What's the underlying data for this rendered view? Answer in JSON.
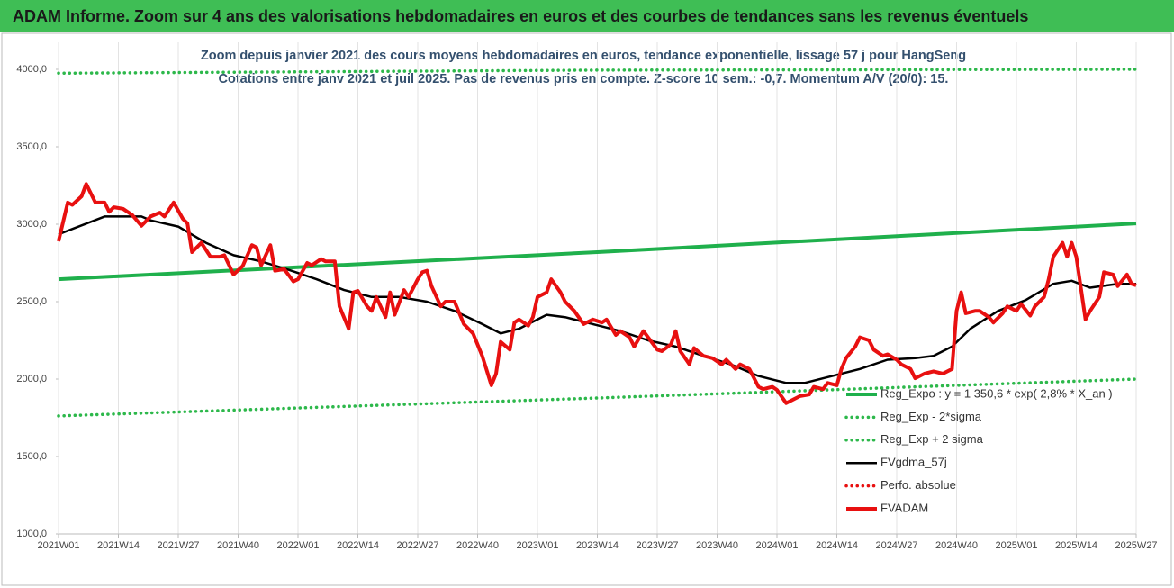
{
  "chart_data": {
    "type": "line",
    "title": "ADAM Informe. Zoom sur 4 ans des valorisations hebdomadaires en euros et des courbes de tendances sans les revenus éventuels",
    "subtitle": [
      "Zoom depuis janvier 2021 des cours moyens hebdomadaires en euros, tendance exponentielle, lissage 57 j pour HangSeng",
      "Cotations entre janv 2021 et juil 2025. Pas de revenus pris en compte. Z-score 10 sem.: -0,7. Momentum A/V (20/0): 15."
    ],
    "xlim": [
      0,
      234
    ],
    "xticks": [
      {
        "value": 0,
        "label": "2021W01"
      },
      {
        "value": 13,
        "label": "2021W14"
      },
      {
        "value": 26,
        "label": "2021W27"
      },
      {
        "value": 39,
        "label": "2021W40"
      },
      {
        "value": 52,
        "label": "2022W01"
      },
      {
        "value": 65,
        "label": "2022W14"
      },
      {
        "value": 78,
        "label": "2022W27"
      },
      {
        "value": 91,
        "label": "2022W40"
      },
      {
        "value": 104,
        "label": "2023W01"
      },
      {
        "value": 117,
        "label": "2023W14"
      },
      {
        "value": 130,
        "label": "2023W27"
      },
      {
        "value": 143,
        "label": "2023W40"
      },
      {
        "value": 156,
        "label": "2024W01"
      },
      {
        "value": 169,
        "label": "2024W14"
      },
      {
        "value": 182,
        "label": "2024W27"
      },
      {
        "value": 195,
        "label": "2024W40"
      },
      {
        "value": 208,
        "label": "2025W01"
      },
      {
        "value": 221,
        "label": "2025W14"
      },
      {
        "value": 234,
        "label": "2025W27"
      }
    ],
    "ylim": [
      1000,
      4000
    ],
    "yticks": [
      {
        "value": 1000,
        "label": "1000,0"
      },
      {
        "value": 1500,
        "label": "1500,0"
      },
      {
        "value": 2000,
        "label": "2000,0"
      },
      {
        "value": 2500,
        "label": "2500,0"
      },
      {
        "value": 3000,
        "label": "3000,0"
      },
      {
        "value": 3500,
        "label": "3500,0"
      },
      {
        "value": 4000,
        "label": "4000,0"
      }
    ],
    "grid": "x",
    "legend": "right",
    "series": [
      {
        "name": "Reg_Expo : y = 1 350,6 * exp( 2,8% *  X_an )",
        "color": "#1fb04c",
        "style": "solid",
        "x": [
          0,
          117,
          234
        ],
        "values": [
          2645,
          2820,
          3005
        ]
      },
      {
        "name": "Reg_Exp - 2*sigma",
        "color": "#2db84b",
        "style": "dotted",
        "x": [
          0,
          117,
          234
        ],
        "values": [
          1762,
          1878,
          2000
        ]
      },
      {
        "name": "Reg_Exp + 2 sigma",
        "color": "#2db84b",
        "style": "dotted",
        "x": [
          0,
          117,
          234
        ],
        "values": [
          3975,
          3995,
          4000
        ]
      },
      {
        "name": "FVgdma_57j",
        "color": "#000000",
        "style": "solid",
        "x": [
          0,
          10,
          18,
          20,
          26,
          32,
          38,
          44,
          50,
          56,
          62,
          68,
          74,
          80,
          86,
          92,
          96,
          100,
          106,
          110,
          116,
          122,
          128,
          134,
          140,
          146,
          152,
          158,
          162,
          168,
          174,
          180,
          186,
          190,
          194,
          198,
          204,
          210,
          216,
          220,
          224,
          230,
          234
        ],
        "values": [
          2935,
          3050,
          3050,
          3025,
          2985,
          2880,
          2800,
          2760,
          2705,
          2645,
          2575,
          2530,
          2530,
          2500,
          2440,
          2355,
          2295,
          2325,
          2415,
          2400,
          2355,
          2310,
          2250,
          2210,
          2150,
          2095,
          2020,
          1975,
          1975,
          2020,
          2065,
          2125,
          2135,
          2150,
          2210,
          2325,
          2440,
          2510,
          2615,
          2635,
          2590,
          2615,
          2615
        ]
      },
      {
        "name": "Perfo. absolue",
        "color": "#e81010",
        "style": "dotted",
        "x": [],
        "values": []
      },
      {
        "name": "FVADAM",
        "color": "#e81010",
        "style": "solid",
        "x": [
          0,
          2,
          3,
          5,
          6,
          8,
          10,
          11,
          12,
          14,
          16,
          18,
          20,
          22,
          23,
          25,
          27,
          28,
          29,
          31,
          33,
          35,
          36,
          38,
          40,
          42,
          43,
          44,
          46,
          47,
          49,
          51,
          52,
          54,
          55,
          57,
          58,
          60,
          61,
          63,
          64,
          65,
          67,
          68,
          69,
          71,
          72,
          73,
          75,
          76,
          78,
          79,
          80,
          81,
          83,
          84,
          86,
          88,
          90,
          92,
          94,
          95,
          96,
          98,
          99,
          100,
          102,
          103,
          104,
          106,
          107,
          109,
          110,
          112,
          114,
          116,
          118,
          119,
          121,
          122,
          124,
          125,
          127,
          128,
          130,
          131,
          133,
          134,
          135,
          137,
          138,
          140,
          142,
          144,
          145,
          147,
          148,
          150,
          152,
          153,
          155,
          156,
          158,
          159,
          161,
          163,
          164,
          166,
          167,
          169,
          170,
          171,
          173,
          174,
          176,
          177,
          179,
          180,
          182,
          183,
          185,
          186,
          188,
          190,
          192,
          194,
          195,
          196,
          197,
          199,
          200,
          202,
          203,
          205,
          206,
          208,
          209,
          211,
          212,
          214,
          215,
          216,
          218,
          219,
          220,
          221,
          223,
          224,
          226,
          227,
          229,
          230,
          232,
          233,
          234
        ],
        "values": [
          2890,
          3140,
          3125,
          3180,
          3260,
          3140,
          3140,
          3080,
          3110,
          3100,
          3060,
          2990,
          3050,
          3075,
          3050,
          3140,
          3035,
          3005,
          2820,
          2880,
          2790,
          2790,
          2800,
          2675,
          2730,
          2865,
          2850,
          2735,
          2865,
          2700,
          2710,
          2630,
          2645,
          2750,
          2735,
          2775,
          2760,
          2760,
          2470,
          2325,
          2560,
          2570,
          2470,
          2440,
          2530,
          2400,
          2560,
          2415,
          2575,
          2530,
          2645,
          2690,
          2700,
          2600,
          2470,
          2500,
          2500,
          2355,
          2295,
          2150,
          1960,
          2035,
          2240,
          2190,
          2365,
          2385,
          2345,
          2400,
          2530,
          2560,
          2645,
          2560,
          2500,
          2440,
          2355,
          2385,
          2365,
          2385,
          2285,
          2310,
          2270,
          2210,
          2310,
          2270,
          2190,
          2180,
          2225,
          2310,
          2180,
          2095,
          2200,
          2150,
          2135,
          2095,
          2125,
          2065,
          2095,
          2065,
          1950,
          1935,
          1950,
          1930,
          1845,
          1860,
          1890,
          1900,
          1950,
          1935,
          1975,
          1960,
          2065,
          2135,
          2210,
          2270,
          2250,
          2190,
          2150,
          2160,
          2125,
          2095,
          2065,
          2005,
          2035,
          2050,
          2035,
          2065,
          2440,
          2560,
          2425,
          2440,
          2440,
          2400,
          2365,
          2425,
          2470,
          2440,
          2485,
          2410,
          2470,
          2530,
          2645,
          2790,
          2880,
          2790,
          2880,
          2790,
          2385,
          2440,
          2530,
          2690,
          2675,
          2600,
          2675,
          2615,
          2605
        ]
      }
    ]
  }
}
